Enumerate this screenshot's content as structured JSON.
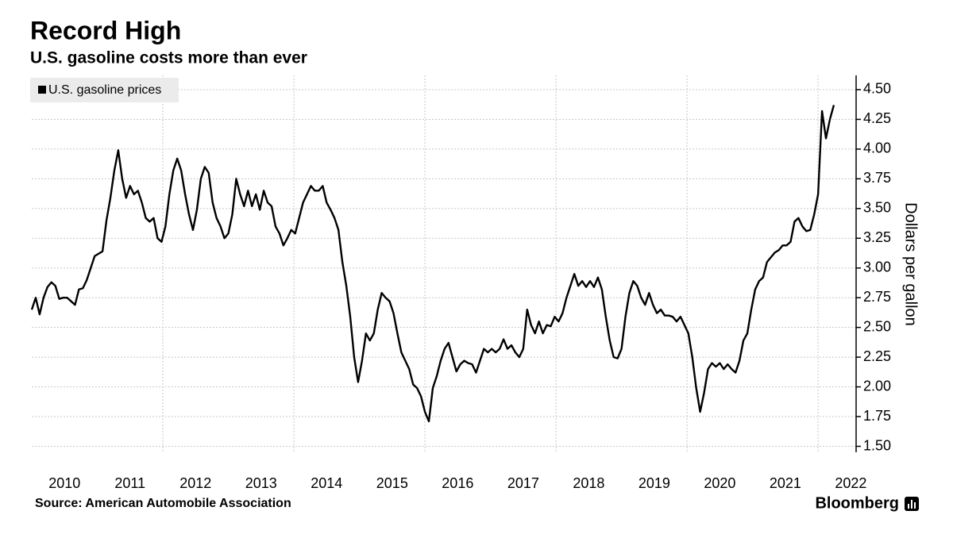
{
  "chart_data": {
    "type": "line",
    "title": "Record High",
    "subtitle": "U.S. gasoline costs more than ever",
    "source": "Source: American Automobile Association",
    "brand": "Bloomberg",
    "y_label": "Dollars per gallon",
    "legend": "upper-left",
    "y_axis_side": "right",
    "grid": true,
    "xlim": [
      2010,
      2022.58
    ],
    "ylim": [
      1.45,
      4.62
    ],
    "xticks": [
      {
        "value": 2010.5,
        "label": "2010"
      },
      {
        "value": 2011.5,
        "label": "2011"
      },
      {
        "value": 2012.5,
        "label": "2012"
      },
      {
        "value": 2013.5,
        "label": "2013"
      },
      {
        "value": 2014.5,
        "label": "2014"
      },
      {
        "value": 2015.5,
        "label": "2015"
      },
      {
        "value": 2016.5,
        "label": "2016"
      },
      {
        "value": 2017.5,
        "label": "2017"
      },
      {
        "value": 2018.5,
        "label": "2018"
      },
      {
        "value": 2019.5,
        "label": "2019"
      },
      {
        "value": 2020.5,
        "label": "2020"
      },
      {
        "value": 2021.5,
        "label": "2021"
      },
      {
        "value": 2022.5,
        "label": "2022"
      }
    ],
    "xgrid": [
      2012,
      2014,
      2016,
      2018,
      2020,
      2022
    ],
    "yticks": [
      {
        "value": 1.5,
        "label": "1.50"
      },
      {
        "value": 1.75,
        "label": "1.75"
      },
      {
        "value": 2.0,
        "label": "2.00"
      },
      {
        "value": 2.25,
        "label": "2.25"
      },
      {
        "value": 2.5,
        "label": "2.50"
      },
      {
        "value": 2.75,
        "label": "2.75"
      },
      {
        "value": 3.0,
        "label": "3.00"
      },
      {
        "value": 3.25,
        "label": "3.25"
      },
      {
        "value": 3.5,
        "label": "3.50"
      },
      {
        "value": 3.75,
        "label": "3.75"
      },
      {
        "value": 4.0,
        "label": "4.00"
      },
      {
        "value": 4.25,
        "label": "4.25"
      },
      {
        "value": 4.5,
        "label": "4.50"
      }
    ],
    "x": [
      2010,
      2010.06,
      2010.12,
      2010.18,
      2010.24,
      2010.3,
      2010.36,
      2010.42,
      2010.48,
      2010.54,
      2010.6,
      2010.66,
      2010.72,
      2010.78,
      2010.84,
      2010.9,
      2010.96,
      2011.02,
      2011.08,
      2011.14,
      2011.2,
      2011.26,
      2011.32,
      2011.38,
      2011.44,
      2011.5,
      2011.56,
      2011.62,
      2011.68,
      2011.74,
      2011.8,
      2011.86,
      2011.92,
      2011.98,
      2012.04,
      2012.1,
      2012.16,
      2012.22,
      2012.28,
      2012.34,
      2012.4,
      2012.46,
      2012.52,
      2012.58,
      2012.64,
      2012.7,
      2012.76,
      2012.82,
      2012.88,
      2012.94,
      2013,
      2013.06,
      2013.12,
      2013.18,
      2013.24,
      2013.3,
      2013.36,
      2013.42,
      2013.48,
      2013.54,
      2013.6,
      2013.66,
      2013.72,
      2013.78,
      2013.84,
      2013.9,
      2013.96,
      2014.02,
      2014.08,
      2014.14,
      2014.2,
      2014.26,
      2014.32,
      2014.38,
      2014.44,
      2014.5,
      2014.56,
      2014.62,
      2014.68,
      2014.74,
      2014.8,
      2014.86,
      2014.92,
      2014.98,
      2015.04,
      2015.1,
      2015.16,
      2015.22,
      2015.28,
      2015.34,
      2015.4,
      2015.46,
      2015.52,
      2015.58,
      2015.64,
      2015.7,
      2015.76,
      2015.82,
      2015.88,
      2015.94,
      2016,
      2016.06,
      2016.12,
      2016.18,
      2016.24,
      2016.3,
      2016.36,
      2016.42,
      2016.48,
      2016.54,
      2016.6,
      2016.66,
      2016.72,
      2016.78,
      2016.84,
      2016.9,
      2016.96,
      2017.02,
      2017.08,
      2017.14,
      2017.2,
      2017.26,
      2017.32,
      2017.38,
      2017.44,
      2017.5,
      2017.56,
      2017.62,
      2017.68,
      2017.74,
      2017.8,
      2017.86,
      2017.92,
      2017.98,
      2018.04,
      2018.1,
      2018.16,
      2018.22,
      2018.28,
      2018.34,
      2018.4,
      2018.46,
      2018.52,
      2018.58,
      2018.64,
      2018.7,
      2018.76,
      2018.82,
      2018.88,
      2018.94,
      2019,
      2019.06,
      2019.12,
      2019.18,
      2019.24,
      2019.3,
      2019.36,
      2019.42,
      2019.48,
      2019.54,
      2019.6,
      2019.66,
      2019.72,
      2019.78,
      2019.84,
      2019.9,
      2019.96,
      2020.02,
      2020.08,
      2020.14,
      2020.2,
      2020.26,
      2020.32,
      2020.38,
      2020.44,
      2020.5,
      2020.56,
      2020.62,
      2020.68,
      2020.74,
      2020.8,
      2020.86,
      2020.92,
      2020.98,
      2021.04,
      2021.1,
      2021.16,
      2021.22,
      2021.28,
      2021.34,
      2021.4,
      2021.46,
      2021.52,
      2021.58,
      2021.64,
      2021.7,
      2021.76,
      2021.82,
      2021.88,
      2021.94,
      2022,
      2022.06,
      2022.12,
      2022.18,
      2022.24
    ],
    "series": [
      {
        "name": "U.S. gasoline prices",
        "color": "#000000",
        "values": [
          2.65,
          2.75,
          2.61,
          2.75,
          2.84,
          2.88,
          2.85,
          2.74,
          2.75,
          2.75,
          2.72,
          2.69,
          2.82,
          2.83,
          2.9,
          3.0,
          3.1,
          3.12,
          3.14,
          3.4,
          3.59,
          3.82,
          3.99,
          3.75,
          3.59,
          3.69,
          3.62,
          3.65,
          3.55,
          3.42,
          3.39,
          3.42,
          3.25,
          3.22,
          3.35,
          3.62,
          3.82,
          3.92,
          3.82,
          3.62,
          3.45,
          3.32,
          3.49,
          3.75,
          3.85,
          3.8,
          3.55,
          3.42,
          3.35,
          3.25,
          3.29,
          3.45,
          3.75,
          3.62,
          3.52,
          3.65,
          3.52,
          3.62,
          3.49,
          3.65,
          3.55,
          3.52,
          3.35,
          3.29,
          3.19,
          3.25,
          3.32,
          3.29,
          3.42,
          3.55,
          3.62,
          3.69,
          3.65,
          3.65,
          3.69,
          3.55,
          3.49,
          3.42,
          3.32,
          3.05,
          2.85,
          2.59,
          2.25,
          2.04,
          2.22,
          2.45,
          2.39,
          2.45,
          2.65,
          2.79,
          2.75,
          2.72,
          2.62,
          2.45,
          2.29,
          2.22,
          2.15,
          2.02,
          1.99,
          1.92,
          1.79,
          1.71,
          1.99,
          2.09,
          2.22,
          2.32,
          2.37,
          2.25,
          2.13,
          2.19,
          2.22,
          2.2,
          2.19,
          2.12,
          2.22,
          2.32,
          2.29,
          2.32,
          2.29,
          2.32,
          2.4,
          2.32,
          2.35,
          2.29,
          2.25,
          2.32,
          2.65,
          2.52,
          2.45,
          2.55,
          2.45,
          2.52,
          2.51,
          2.59,
          2.55,
          2.62,
          2.75,
          2.85,
          2.95,
          2.85,
          2.89,
          2.84,
          2.89,
          2.84,
          2.92,
          2.82,
          2.59,
          2.39,
          2.25,
          2.24,
          2.32,
          2.59,
          2.79,
          2.89,
          2.85,
          2.75,
          2.69,
          2.79,
          2.69,
          2.62,
          2.65,
          2.6,
          2.6,
          2.59,
          2.55,
          2.59,
          2.52,
          2.45,
          2.25,
          1.99,
          1.79,
          1.95,
          2.15,
          2.2,
          2.17,
          2.2,
          2.15,
          2.19,
          2.15,
          2.12,
          2.22,
          2.39,
          2.45,
          2.65,
          2.82,
          2.89,
          2.92,
          3.05,
          3.09,
          3.13,
          3.15,
          3.19,
          3.19,
          3.22,
          3.39,
          3.42,
          3.35,
          3.31,
          3.32,
          3.45,
          3.62,
          4.32,
          4.09,
          4.25,
          4.37
        ]
      }
    ]
  }
}
